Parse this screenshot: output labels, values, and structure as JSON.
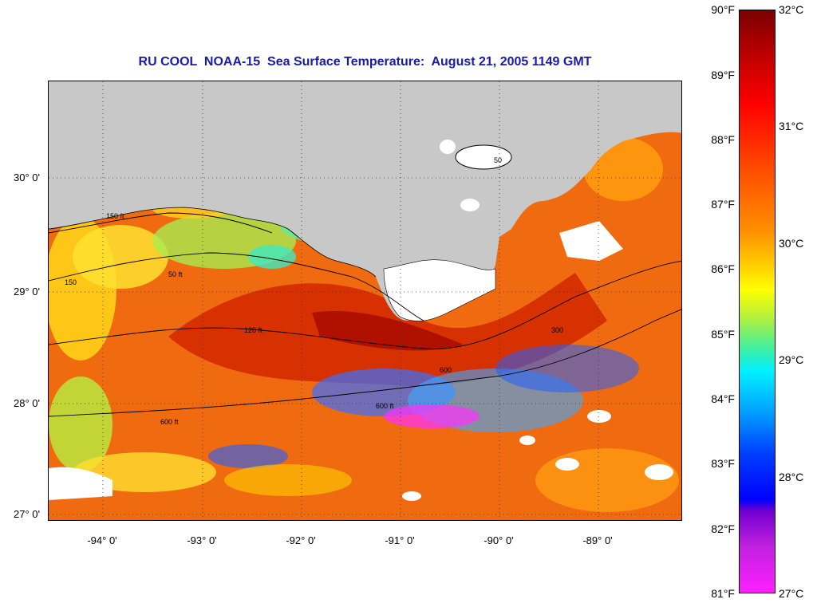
{
  "title": "RU COOL  NOAA-15  Sea Surface Temperature:  August 21, 2005 1149 GMT",
  "lat_labels": [
    "30° 0'",
    "29° 0'",
    "28° 0'",
    "27° 0'"
  ],
  "lon_labels": [
    "-94° 0'",
    "-93° 0'",
    "-92° 0'",
    "-91° 0'",
    "-90° 0'",
    "-89° 0'"
  ],
  "colorbar": {
    "f_labels": [
      "90°F",
      "89°F",
      "88°F",
      "87°F",
      "86°F",
      "85°F",
      "84°F",
      "83°F",
      "82°F",
      "81°F"
    ],
    "c_labels": [
      "32°C",
      "31°C",
      "30°C",
      "29°C",
      "28°C",
      "27°C"
    ]
  },
  "contour_labels": [
    "50",
    "150 ft",
    "50 ft",
    "150",
    "120 ft",
    "600 ft",
    "600 ft",
    "600",
    "300"
  ],
  "colors": {
    "land": "#c8c8c8",
    "title": "#1a1aa8",
    "warm_core": "#c81e00",
    "ocean_base": "#f06a10"
  }
}
